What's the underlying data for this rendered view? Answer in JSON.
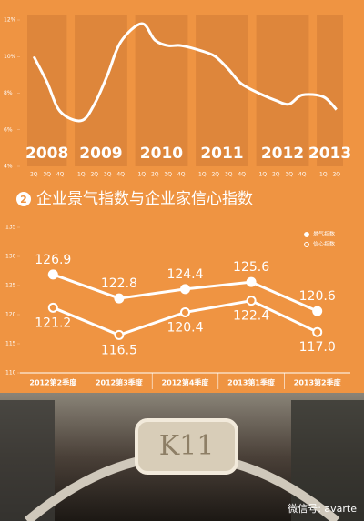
{
  "chart_data": [
    {
      "type": "line",
      "years": [
        {
          "label": "2008",
          "quarters": [
            "2Q",
            "3Q",
            "4Q"
          ]
        },
        {
          "label": "2009",
          "quarters": [
            "1Q",
            "2Q",
            "3Q",
            "4Q"
          ]
        },
        {
          "label": "2010",
          "quarters": [
            "1Q",
            "2Q",
            "3Q",
            "4Q"
          ]
        },
        {
          "label": "2011",
          "quarters": [
            "1Q",
            "2Q",
            "3Q",
            "4Q"
          ]
        },
        {
          "label": "2012",
          "quarters": [
            "1Q",
            "2Q",
            "3Q",
            "4Q"
          ]
        },
        {
          "label": "2013",
          "quarters": [
            "1Q",
            "2Q"
          ]
        }
      ],
      "values": [
        10.0,
        8.6,
        7.0,
        6.5,
        7.4,
        9.0,
        10.8,
        11.8,
        10.9,
        10.6,
        10.6,
        10.3,
        10.0,
        9.3,
        8.5,
        7.9,
        7.6,
        7.4,
        7.9,
        7.8,
        7.1
      ],
      "color": "#ffffff",
      "ylim": [
        4,
        12
      ],
      "yticks": [
        {
          "value": 4,
          "label": "4%"
        },
        {
          "value": 6,
          "label": "6%"
        },
        {
          "value": 8,
          "label": "8%"
        },
        {
          "value": 10,
          "label": "10%"
        },
        {
          "value": 12,
          "label": "12%"
        }
      ],
      "grid": false
    },
    {
      "type": "line",
      "badge": "2",
      "title": "企业景气指数与企业家信心指数",
      "categories": [
        "2012第2季度",
        "2012第3季度",
        "2012第4季度",
        "2013第1季度",
        "2013第2季度"
      ],
      "series": [
        {
          "name": "景气指数",
          "color": "#ffffff",
          "marker": "filled",
          "values": [
            126.9,
            122.8,
            124.4,
            125.6,
            120.6
          ],
          "value_labels": [
            "126.9",
            "122.8",
            "124.4",
            "125.6",
            "120.6"
          ]
        },
        {
          "name": "信心指数",
          "color": "#ffffff",
          "marker": "hollow",
          "values": [
            121.2,
            116.5,
            120.4,
            122.4,
            117.0
          ],
          "value_labels": [
            "121.2",
            "116.5",
            "120.4",
            "122.4",
            "117.0"
          ]
        }
      ],
      "ylim": [
        110,
        135
      ],
      "yticks": [
        110,
        115,
        120,
        125,
        130,
        135
      ],
      "grid": false,
      "legend": "top-right"
    }
  ],
  "photo": {
    "watermark": "微信号: avarte"
  }
}
